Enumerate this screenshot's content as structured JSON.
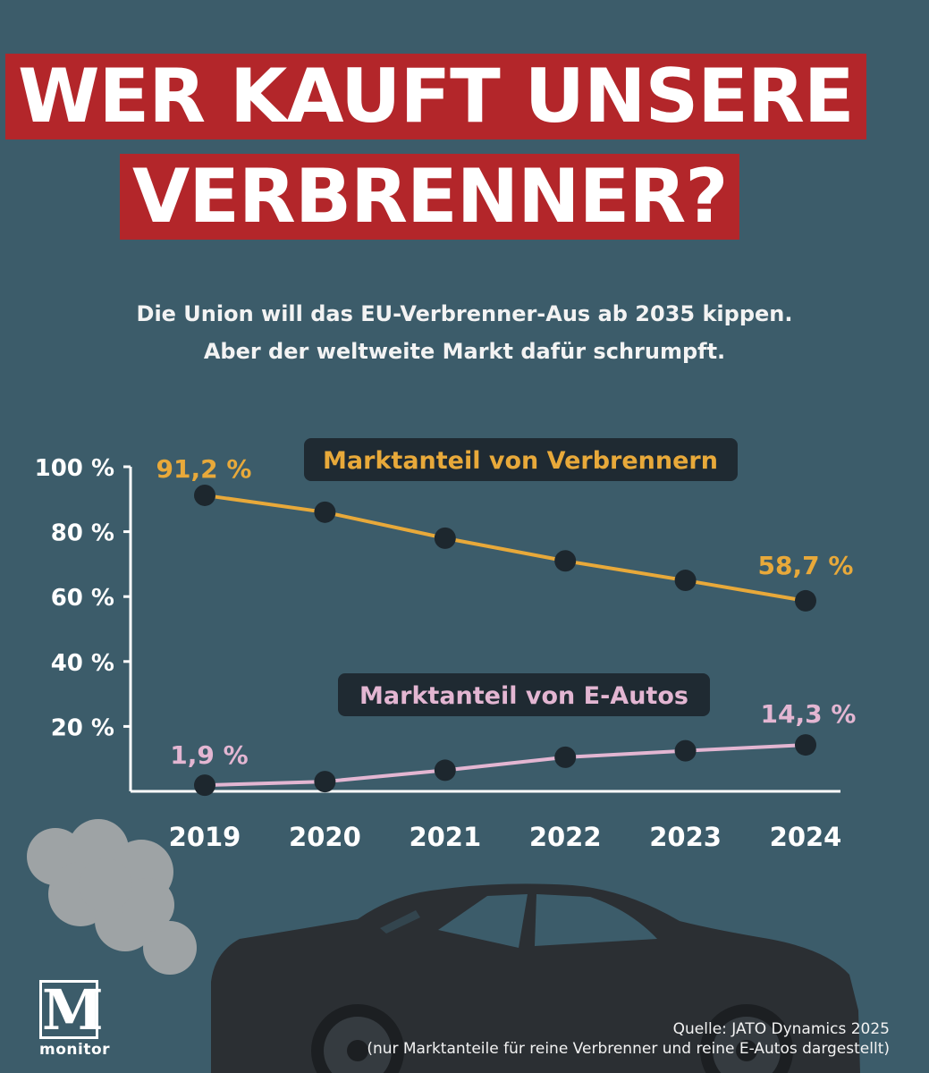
{
  "header": {
    "title_line1": "WER KAUFT UNSERE",
    "title_line2": "VERBRENNER?",
    "subtitle_line1": "Die Union will das EU-Verbrenner-Aus ab 2035 kippen.",
    "subtitle_line2": "Aber der weltweite Markt dafür schrumpft."
  },
  "footer": {
    "logo_letter": "M",
    "logo_name": "monitor",
    "source_line1": "Quelle: JATO Dynamics 2025",
    "source_line2": "(nur Marktanteile für reine Verbrenner und reine E-Autos dargestellt)"
  },
  "colors": {
    "background": "#3c5c6a",
    "title_bg": "#b3262a",
    "combustion": "#e8a93a",
    "electric": "#e3b6d2",
    "marker": "#1d272e",
    "label_box": "#1f2a32"
  },
  "chart_data": {
    "type": "line",
    "categories": [
      "2019",
      "2020",
      "2021",
      "2022",
      "2023",
      "2024"
    ],
    "ylim": [
      0,
      100
    ],
    "yticks": [
      20,
      40,
      60,
      80,
      100
    ],
    "ytick_labels": [
      "20 %",
      "40 %",
      "60 %",
      "80 %",
      "100 %"
    ],
    "series": [
      {
        "name": "Marktanteil von Verbrennern",
        "values": [
          91.2,
          86,
          78,
          71,
          65,
          58.7
        ],
        "labels": [
          {
            "index": 0,
            "text": "91,2 %"
          },
          {
            "index": 5,
            "text": "58,7 %"
          }
        ],
        "color": "#e8a93a"
      },
      {
        "name": "Marktanteil von E-Autos",
        "values": [
          1.9,
          3,
          6.5,
          10.5,
          12.5,
          14.3
        ],
        "labels": [
          {
            "index": 0,
            "text": "1,9 %"
          },
          {
            "index": 5,
            "text": "14,3 %"
          }
        ],
        "color": "#e3b6d2"
      }
    ]
  }
}
